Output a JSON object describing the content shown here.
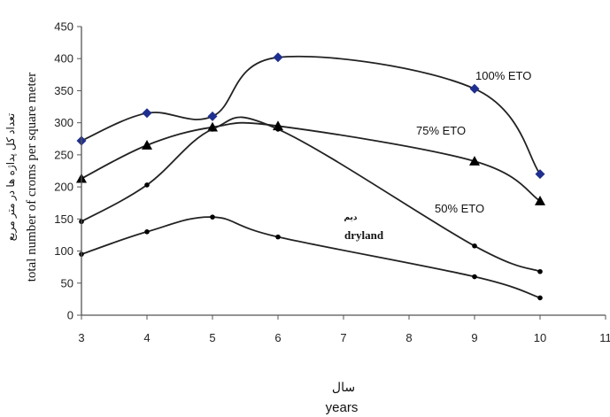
{
  "chart_data": {
    "type": "line",
    "xlabel": "years",
    "xlabel_alt": "سال",
    "ylabel": "total number of croms per square meter",
    "ylabel_alt": "تعداد کل پداژه ها در متر مربع",
    "xlim": [
      3,
      11
    ],
    "ylim": [
      0,
      450
    ],
    "x_ticks": [
      3,
      4,
      5,
      6,
      7,
      8,
      9,
      10,
      11
    ],
    "y_ticks": [
      0,
      50,
      100,
      150,
      200,
      250,
      300,
      350,
      400,
      450
    ],
    "grid": false,
    "legend": "inline labels",
    "series": [
      {
        "name": "100% ETO",
        "marker": "diamond",
        "color": "#1f2f8f",
        "x": [
          3,
          4,
          5,
          6,
          9,
          10
        ],
        "y": [
          272,
          315,
          310,
          402,
          353,
          220
        ]
      },
      {
        "name": "75% ETO",
        "marker": "triangle",
        "color": "#000000",
        "x": [
          3,
          4,
          5,
          6,
          9,
          10
        ],
        "y": [
          213,
          265,
          293,
          295,
          240,
          178
        ]
      },
      {
        "name": "50% ETO",
        "marker": "dot",
        "color": "#000000",
        "x": [
          3,
          4,
          5,
          6,
          9,
          10
        ],
        "y": [
          146,
          203,
          290,
          290,
          108,
          68
        ]
      },
      {
        "name": "dryland",
        "name_alt": "دیم",
        "marker": "dot",
        "color": "#000000",
        "x": [
          3,
          4,
          5,
          6,
          9,
          10
        ],
        "y": [
          95,
          130,
          153,
          122,
          60,
          27
        ]
      }
    ]
  }
}
